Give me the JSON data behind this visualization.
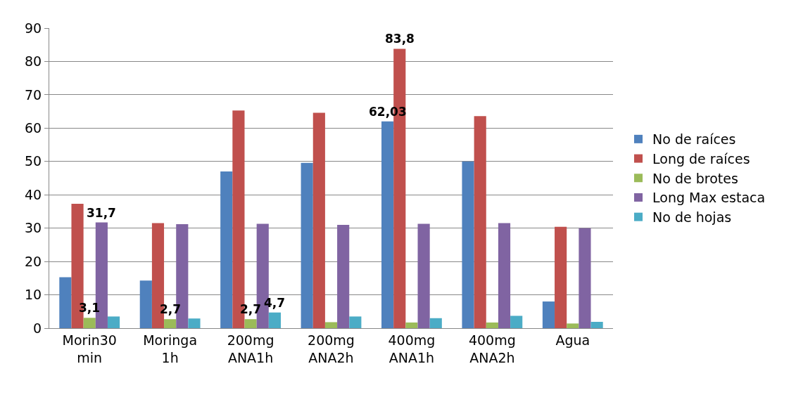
{
  "chart_data": {
    "type": "bar",
    "categories": [
      "Morin30 min",
      "Moringa 1h",
      "200mg ANA1h",
      "200mg ANA2h",
      "400mg ANA1h",
      "400mg ANA2h",
      "Agua"
    ],
    "series": [
      {
        "name": "No de raíces",
        "color": "#4f81bd",
        "values": [
          15.3,
          14.3,
          47,
          49.6,
          62.03,
          50,
          8
        ],
        "value_labels": [
          null,
          null,
          null,
          null,
          "62,03",
          null,
          null
        ]
      },
      {
        "name": "Long de raíces",
        "color": "#c0504d",
        "values": [
          37.3,
          31.5,
          65.3,
          64.6,
          83.8,
          63.6,
          30.4
        ],
        "value_labels": [
          null,
          null,
          null,
          null,
          "83,8",
          null,
          null
        ]
      },
      {
        "name": "No de brotes",
        "color": "#9bbb59",
        "values": [
          3.1,
          2.7,
          2.7,
          1.8,
          1.7,
          1.7,
          1.4
        ],
        "value_labels": [
          "3,1",
          "2,7",
          "2,7",
          null,
          null,
          null,
          null
        ]
      },
      {
        "name": "Long Max estaca",
        "color": "#8064a2",
        "values": [
          31.7,
          31.2,
          31.3,
          31,
          31.3,
          31.5,
          30
        ],
        "value_labels": [
          "31,7",
          null,
          null,
          null,
          null,
          null,
          null
        ]
      },
      {
        "name": "No de hojas",
        "color": "#4bacc6",
        "values": [
          3.5,
          2.9,
          4.7,
          3.5,
          3,
          3.7,
          1.9
        ],
        "value_labels": [
          null,
          null,
          "4,7",
          null,
          null,
          null,
          null
        ]
      }
    ],
    "ylim": [
      0,
      90
    ],
    "yticks": [
      0,
      10,
      20,
      30,
      40,
      50,
      60,
      70,
      80,
      90
    ],
    "grid": "y",
    "legend": "right"
  }
}
